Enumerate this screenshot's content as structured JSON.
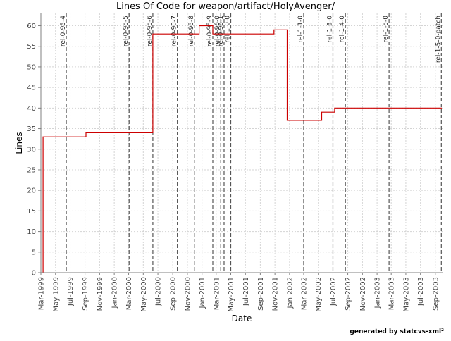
{
  "chart_data": {
    "type": "line",
    "title": "Lines Of Code for weapon/artifact/HolyAvenger/",
    "xlabel": "Date",
    "ylabel": "Lines",
    "ylim": [
      0,
      63
    ],
    "yticks": [
      0,
      5,
      10,
      15,
      20,
      25,
      30,
      35,
      40,
      45,
      50,
      55,
      60
    ],
    "xlim": [
      "1999-03-01",
      "2003-10-01"
    ],
    "xticks": [
      "Mar-1999",
      "May-1999",
      "Jul-1999",
      "Sep-1999",
      "Nov-1999",
      "Jan-2000",
      "Mar-2000",
      "May-2000",
      "Jul-2000",
      "Sep-2000",
      "Nov-2000",
      "Jan-2001",
      "Mar-2001",
      "May-2001",
      "Jul-2001",
      "Sep-2001",
      "Nov-2001",
      "Jan-2002",
      "Mar-2002",
      "May-2002",
      "Jul-2002",
      "Sep-2002",
      "Nov-2002",
      "Jan-2003",
      "Mar-2003",
      "May-2003",
      "Jul-2003",
      "Sep-2003"
    ],
    "grid": true,
    "line_color": "#cc0000",
    "series": [
      {
        "style": "step",
        "points": [
          {
            "x": "1999-03-10",
            "y": 0
          },
          {
            "x": "1999-03-10",
            "y": 33
          },
          {
            "x": "1999-09-05",
            "y": 33
          },
          {
            "x": "1999-09-05",
            "y": 34
          },
          {
            "x": "2000-06-10",
            "y": 34
          },
          {
            "x": "2000-06-10",
            "y": 58
          },
          {
            "x": "2000-12-20",
            "y": 58
          },
          {
            "x": "2000-12-20",
            "y": 60
          },
          {
            "x": "2001-02-15",
            "y": 60
          },
          {
            "x": "2001-02-15",
            "y": 58
          },
          {
            "x": "2001-10-28",
            "y": 58
          },
          {
            "x": "2001-10-28",
            "y": 59
          },
          {
            "x": "2001-12-22",
            "y": 59
          },
          {
            "x": "2001-12-22",
            "y": 37
          },
          {
            "x": "2002-05-15",
            "y": 37
          },
          {
            "x": "2002-05-15",
            "y": 39
          },
          {
            "x": "2002-07-08",
            "y": 39
          },
          {
            "x": "2002-07-08",
            "y": 40
          },
          {
            "x": "2003-09-28",
            "y": 40
          }
        ]
      }
    ],
    "annotations": [
      {
        "label": "rel-0-95-4",
        "x": "1999-06-15"
      },
      {
        "label": "rel-0-95-5",
        "x": "2000-03-03"
      },
      {
        "label": "rel-0-95-6",
        "x": "2000-06-10"
      },
      {
        "label": "rel-0-95-7",
        "x": "2000-09-20"
      },
      {
        "label": "rel-0-95-8",
        "x": "2000-11-30"
      },
      {
        "label": "rel-0-95-9",
        "x": "2001-02-15"
      },
      {
        "label": "rel-0-96-0",
        "x": "2001-03-20"
      },
      {
        "label": "rel-0-96-1",
        "x": "2001-04-03"
      },
      {
        "label": "rel-1-0-0",
        "x": "2001-05-01"
      },
      {
        "label": "rel-1-1-0",
        "x": "2002-03-01"
      },
      {
        "label": "rel-1-3-0",
        "x": "2002-07-01"
      },
      {
        "label": "rel-1-4-0",
        "x": "2002-08-22"
      },
      {
        "label": "rel-1-5-0",
        "x": "2003-02-20"
      },
      {
        "label": "rel-1-5-0-patch",
        "x": "2003-09-26"
      }
    ]
  },
  "footer": "generated by statcvs-xml²"
}
